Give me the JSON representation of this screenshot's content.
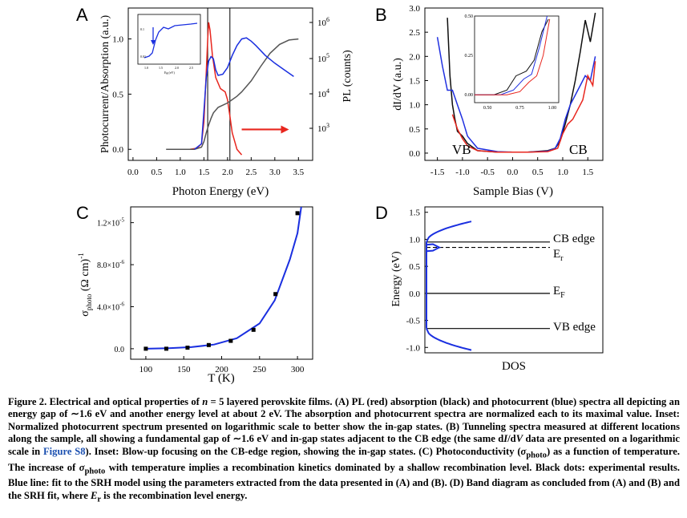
{
  "figure": {
    "panel_a": {
      "label": "A",
      "xlabel": "Photon Energy (eV)",
      "ylabel_left": "Photocurrent/Absorption (a.u.)",
      "ylabel_right": "PL (counts)",
      "xticks": [
        "0.0",
        "0.5",
        "1.0",
        "1.5",
        "2.0",
        "2.5",
        "3.0",
        "3.5"
      ],
      "yticks_left": [
        "0.0",
        "0.5",
        "1.0"
      ],
      "yticks_right": [
        {
          "base": "10",
          "exp": "3"
        },
        {
          "base": "10",
          "exp": "4"
        },
        {
          "base": "10",
          "exp": "5"
        },
        {
          "base": "10",
          "exp": "6"
        }
      ],
      "inset_xticks": [
        "1.0",
        "1.5",
        "2.0",
        "2.5"
      ],
      "inset_yticks": [
        "0.1",
        "0.01"
      ],
      "inset_xlabel": "Eg (eV)"
    },
    "panel_b": {
      "label": "B",
      "xlabel": "Sample Bias (V)",
      "ylabel": "dI/dV (a.u.)",
      "xticks": [
        "-1.5",
        "-1.0",
        "-0.5",
        "0.0",
        "0.5",
        "1.0",
        "1.5"
      ],
      "yticks": [
        "0.0",
        "0.5",
        "1.0",
        "1.5",
        "2.0",
        "2.5",
        "3.0"
      ],
      "vb": "VB",
      "cb": "CB",
      "inset_xticks": [
        "0.50",
        "0.75",
        "1.00"
      ],
      "inset_yticks": [
        "0.00",
        "0.25",
        "0.50"
      ]
    },
    "panel_c": {
      "label": "C",
      "xlabel": "T (K)",
      "ylabel_main": "σ",
      "ylabel_sub": "photo",
      "ylabel_unit": " (Ω cm)",
      "ylabel_sup": "-1",
      "xticks": [
        "100",
        "150",
        "200",
        "250",
        "300"
      ],
      "yticks": [
        {
          "m": "0.0",
          "e": ""
        },
        {
          "m": "4.0×10",
          "e": "-6"
        },
        {
          "m": "8.0×10",
          "e": "-6"
        },
        {
          "m": "1.2×10",
          "e": "-5"
        }
      ]
    },
    "panel_d": {
      "label": "D",
      "xlabel": "DOS",
      "ylabel": "Energy (eV)",
      "yticks": [
        "1.5",
        "1.0",
        "0.5",
        "0.0",
        "-0.5",
        "-1.0"
      ],
      "cb_edge": "CB edge",
      "er": "E",
      "er_sub": "r",
      "ef": "E",
      "ef_sub": "F",
      "vb_edge": "VB edge"
    }
  },
  "chart_data": [
    {
      "panel": "A",
      "type": "line",
      "xlim": [
        -0.1,
        3.8
      ],
      "ylim_left": [
        -0.1,
        1.28
      ],
      "series": [
        {
          "color": "#e8261e",
          "x": [
            1.2,
            1.35,
            1.45,
            1.5,
            1.55,
            1.58,
            1.6,
            1.63,
            1.68,
            1.75,
            1.85,
            1.95,
            2.0,
            2.05,
            2.1,
            2.2,
            2.3
          ],
          "y": [
            0.0,
            0.01,
            0.05,
            0.25,
            0.7,
            1.0,
            1.15,
            1.08,
            0.85,
            0.65,
            0.55,
            0.52,
            0.45,
            0.3,
            0.15,
            0.0,
            -0.05
          ]
        },
        {
          "color": "#555555",
          "x": [
            0.7,
            1.0,
            1.3,
            1.45,
            1.5,
            1.55,
            1.6,
            1.65,
            1.7,
            1.8,
            1.9,
            2.0,
            2.1,
            2.2,
            2.3,
            2.5,
            2.7,
            2.9,
            3.1,
            3.3,
            3.5
          ],
          "y": [
            0.0,
            0.0,
            0.0,
            0.02,
            0.07,
            0.15,
            0.22,
            0.28,
            0.33,
            0.38,
            0.4,
            0.42,
            0.45,
            0.48,
            0.52,
            0.62,
            0.75,
            0.87,
            0.95,
            0.99,
            1.0
          ]
        },
        {
          "color": "#1a2fe0",
          "x": [
            1.3,
            1.45,
            1.5,
            1.55,
            1.6,
            1.65,
            1.7,
            1.75,
            1.8,
            1.9,
            2.0,
            2.1,
            2.2,
            2.3,
            2.4,
            2.5,
            2.6,
            2.8,
            3.0,
            3.2,
            3.4
          ],
          "y": [
            0.0,
            0.05,
            0.35,
            0.65,
            0.8,
            0.84,
            0.82,
            0.72,
            0.67,
            0.68,
            0.74,
            0.85,
            0.94,
            1.0,
            1.01,
            0.98,
            0.94,
            0.85,
            0.78,
            0.72,
            0.66
          ]
        }
      ],
      "vlines_x": [
        1.58,
        2.05
      ],
      "arrow": {
        "from_x": 2.3,
        "to_x": 3.3,
        "y": 0.18
      }
    },
    {
      "panel": "B",
      "type": "line",
      "xlim": [
        -1.75,
        1.8
      ],
      "ylim": [
        -0.15,
        3.0
      ],
      "series": [
        {
          "color": "#0f0f0f",
          "x": [
            -1.3,
            -1.25,
            -1.2,
            -1.15,
            -1.1,
            -1.0,
            -0.9,
            -0.7,
            -0.3,
            0.0,
            0.3,
            0.7,
            0.85,
            0.95,
            1.05,
            1.15,
            1.25,
            1.35,
            1.45,
            1.55,
            1.65
          ],
          "y": [
            2.8,
            1.6,
            1.0,
            0.7,
            0.45,
            0.35,
            0.2,
            0.05,
            0.02,
            0.02,
            0.02,
            0.05,
            0.1,
            0.25,
            0.6,
            1.0,
            1.5,
            2.1,
            2.75,
            2.3,
            2.9
          ]
        },
        {
          "color": "#2030e0",
          "x": [
            -1.5,
            -1.4,
            -1.3,
            -1.2,
            -1.1,
            -1.0,
            -0.9,
            -0.7,
            -0.3,
            0.0,
            0.3,
            0.7,
            0.85,
            0.95,
            1.05,
            1.15,
            1.25,
            1.35,
            1.45,
            1.55,
            1.65
          ],
          "y": [
            2.4,
            1.8,
            1.3,
            1.3,
            1.0,
            0.7,
            0.35,
            0.1,
            0.03,
            0.02,
            0.02,
            0.04,
            0.1,
            0.3,
            0.7,
            1.0,
            1.2,
            1.4,
            1.6,
            1.5,
            2.0
          ]
        },
        {
          "color": "#e8261e",
          "x": [
            -1.2,
            -1.1,
            -1.0,
            -0.9,
            -0.7,
            -0.3,
            0.0,
            0.3,
            0.7,
            0.9,
            1.0,
            1.1,
            1.2,
            1.3,
            1.4,
            1.5,
            1.6,
            1.65
          ],
          "y": [
            0.8,
            0.5,
            0.3,
            0.15,
            0.05,
            0.02,
            0.02,
            0.02,
            0.03,
            0.1,
            0.4,
            0.6,
            0.7,
            0.9,
            1.1,
            1.6,
            1.4,
            1.9
          ]
        }
      ],
      "inset": {
        "xlim": [
          0.4,
          1.05
        ],
        "ylim": [
          -0.05,
          0.5
        ]
      }
    },
    {
      "panel": "C",
      "type": "scatter",
      "xlim": [
        80,
        320
      ],
      "ylim": [
        -1e-06,
        1.35e-05
      ],
      "x": [
        100,
        127,
        155,
        183,
        212,
        242,
        271,
        300
      ],
      "y": [
        0.0,
        0.0,
        1e-07,
        3.5e-07,
        7.5e-07,
        1.8e-06,
        5.2e-06,
        1.29e-05
      ],
      "fit": {
        "color": "#1a2fe0",
        "x": [
          100,
          130,
          160,
          190,
          220,
          250,
          270,
          290,
          300,
          305
        ],
        "y": [
          0.0,
          5e-08,
          1.5e-07,
          4e-07,
          1e-06,
          2.4e-06,
          4.6e-06,
          8.5e-06,
          1.1e-05,
          1.35e-05
        ]
      }
    },
    {
      "panel": "D",
      "type": "line",
      "ylim": [
        -1.1,
        1.6
      ],
      "levels": [
        0.95,
        0.85,
        0.0,
        -0.65
      ]
    }
  ]
}
